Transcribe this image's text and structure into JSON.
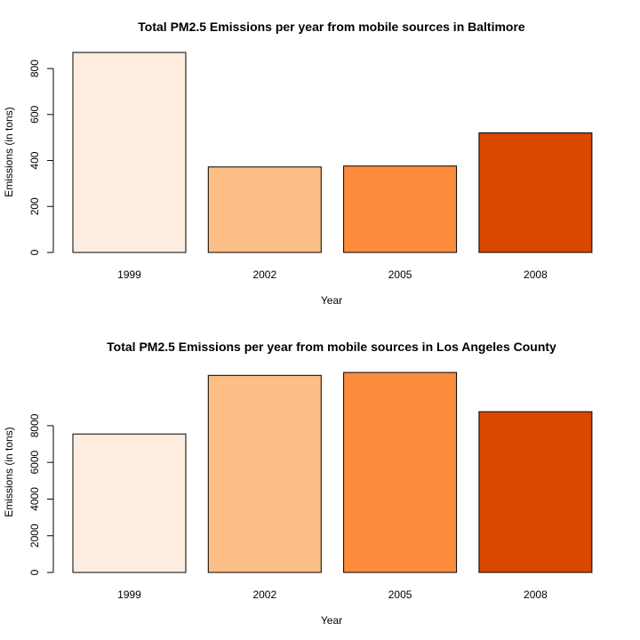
{
  "chart_data": [
    {
      "type": "bar",
      "title": "Total PM2.5 Emissions per year from mobile sources in Baltimore",
      "xlabel": "Year",
      "ylabel": "Emissions (in tons)",
      "categories": [
        "1999",
        "2002",
        "2005",
        "2008"
      ],
      "values": [
        870,
        372,
        376,
        520
      ],
      "yticks": [
        0,
        200,
        400,
        600,
        800
      ],
      "ylim": [
        0,
        870
      ],
      "colors": [
        "#FEEDDE",
        "#FDBE85",
        "#FD8D3C",
        "#D94701"
      ],
      "grid": false,
      "legend": "none"
    },
    {
      "type": "bar",
      "title": "Total PM2.5 Emissions per year from mobile sources in Los Angeles County",
      "xlabel": "Year",
      "ylabel": "Emissions (in tons)",
      "categories": [
        "1999",
        "2002",
        "2005",
        "2008"
      ],
      "values": [
        7546,
        10741,
        10902,
        8763
      ],
      "yticks": [
        0,
        2000,
        4000,
        6000,
        8000
      ],
      "ylim": [
        0,
        10902
      ],
      "colors": [
        "#FEEDDE",
        "#FDBE85",
        "#FD8D3C",
        "#D94701"
      ],
      "grid": false,
      "legend": "none"
    }
  ]
}
